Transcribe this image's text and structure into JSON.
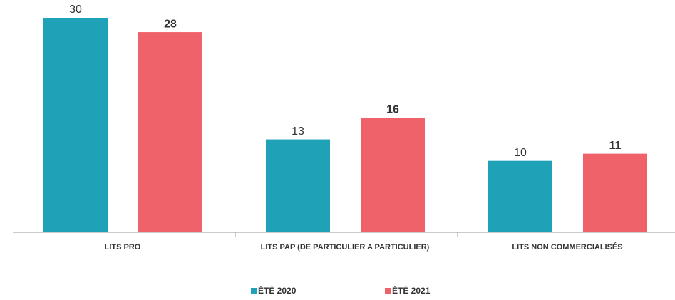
{
  "chart_data": {
    "type": "bar",
    "categories": [
      "LITS PRO",
      "LITS PAP (DE PARTICULIER A PARTICULIER)",
      "LITS NON COMMERCIALISÉS"
    ],
    "series": [
      {
        "name": "ÉTÉ 2020",
        "color": "#1fa2b8",
        "values": [
          30,
          13,
          10
        ]
      },
      {
        "name": "ÉTÉ 2021",
        "color": "#f0626a",
        "values": [
          28,
          16,
          11
        ]
      }
    ]
  }
}
